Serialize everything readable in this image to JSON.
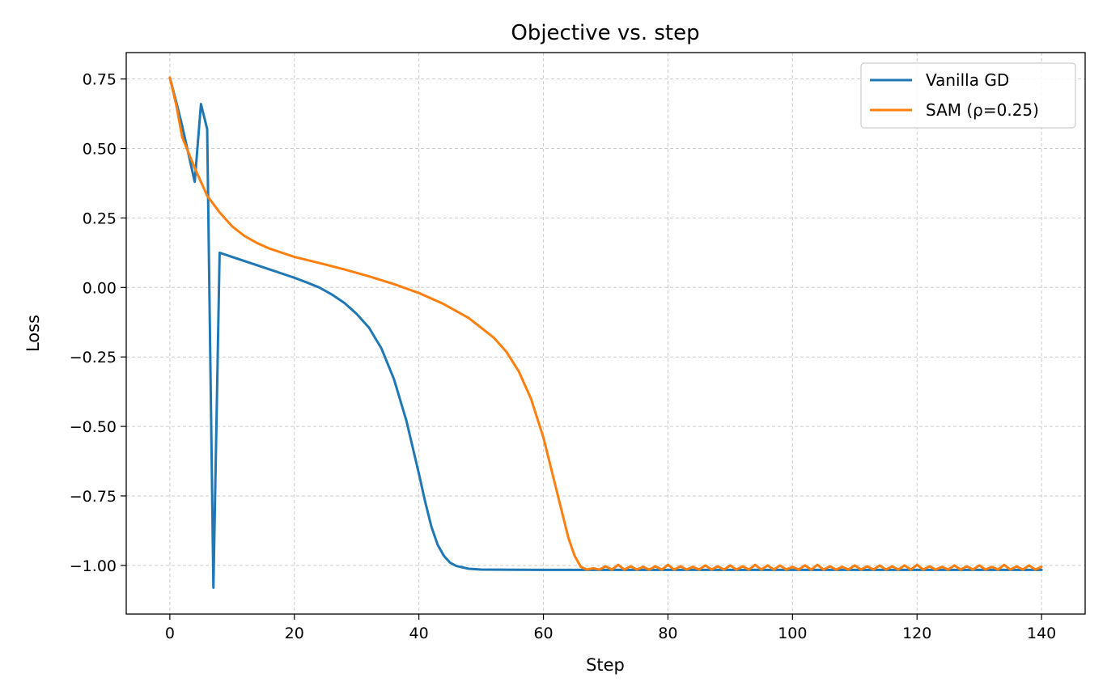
{
  "chart_data": {
    "type": "line",
    "title": "Objective vs. step",
    "xlabel": "Step",
    "ylabel": "Loss",
    "xlim": [
      -7,
      147
    ],
    "ylim": [
      -1.175,
      0.845
    ],
    "x_ticks": [
      0,
      20,
      40,
      60,
      80,
      100,
      120,
      140
    ],
    "x_tick_labels": [
      "0",
      "20",
      "40",
      "60",
      "80",
      "100",
      "120",
      "140"
    ],
    "y_ticks": [
      0.75,
      0.5,
      0.25,
      0.0,
      -0.25,
      -0.5,
      -0.75,
      -1.0
    ],
    "y_tick_labels": [
      "0.75",
      "0.50",
      "0.25",
      "0.00",
      "−0.25",
      "−0.50",
      "−0.75",
      "−1.00"
    ],
    "grid": true,
    "legend_position": "top-right",
    "series": [
      {
        "name": "Vanilla GD",
        "color": "#1f77b4",
        "points": [
          [
            0,
            0.755
          ],
          [
            1,
            0.67
          ],
          [
            2,
            0.58
          ],
          [
            3,
            0.48
          ],
          [
            4,
            0.38
          ],
          [
            5,
            0.66
          ],
          [
            6,
            0.57
          ],
          [
            7,
            -1.08
          ],
          [
            8,
            0.125
          ],
          [
            10,
            0.11
          ],
          [
            12,
            0.095
          ],
          [
            14,
            0.08
          ],
          [
            16,
            0.065
          ],
          [
            18,
            0.05
          ],
          [
            20,
            0.035
          ],
          [
            22,
            0.018
          ],
          [
            24,
            0.0
          ],
          [
            26,
            -0.025
          ],
          [
            28,
            -0.055
          ],
          [
            30,
            -0.095
          ],
          [
            32,
            -0.145
          ],
          [
            34,
            -0.22
          ],
          [
            36,
            -0.33
          ],
          [
            38,
            -0.48
          ],
          [
            40,
            -0.67
          ],
          [
            41,
            -0.77
          ],
          [
            42,
            -0.86
          ],
          [
            43,
            -0.925
          ],
          [
            44,
            -0.965
          ],
          [
            45,
            -0.99
          ],
          [
            46,
            -1.002
          ],
          [
            48,
            -1.012
          ],
          [
            50,
            -1.015
          ],
          [
            60,
            -1.016
          ],
          [
            80,
            -1.016
          ],
          [
            100,
            -1.016
          ],
          [
            120,
            -1.016
          ],
          [
            140,
            -1.016
          ]
        ]
      },
      {
        "name": "SAM (ρ=0.25)",
        "color": "#ff7f0e",
        "points": [
          [
            0,
            0.755
          ],
          [
            1,
            0.66
          ],
          [
            2,
            0.54
          ],
          [
            4,
            0.43
          ],
          [
            6,
            0.33
          ],
          [
            8,
            0.27
          ],
          [
            10,
            0.22
          ],
          [
            12,
            0.185
          ],
          [
            14,
            0.16
          ],
          [
            16,
            0.14
          ],
          [
            18,
            0.125
          ],
          [
            20,
            0.11
          ],
          [
            24,
            0.088
          ],
          [
            28,
            0.065
          ],
          [
            32,
            0.04
          ],
          [
            36,
            0.012
          ],
          [
            40,
            -0.02
          ],
          [
            44,
            -0.06
          ],
          [
            48,
            -0.11
          ],
          [
            52,
            -0.18
          ],
          [
            54,
            -0.23
          ],
          [
            56,
            -0.3
          ],
          [
            58,
            -0.4
          ],
          [
            60,
            -0.54
          ],
          [
            62,
            -0.72
          ],
          [
            64,
            -0.9
          ],
          [
            65,
            -0.965
          ],
          [
            66,
            -1.005
          ],
          [
            67,
            -1.015
          ],
          [
            68,
            -1.01
          ],
          [
            69,
            -1.015
          ],
          [
            70,
            -1.003
          ],
          [
            71,
            -1.015
          ],
          [
            72,
            -0.998
          ],
          [
            73,
            -1.015
          ],
          [
            74,
            -1.003
          ],
          [
            75,
            -1.015
          ],
          [
            76,
            -1.005
          ],
          [
            77,
            -1.015
          ],
          [
            78,
            -1.003
          ],
          [
            79,
            -1.015
          ],
          [
            80,
            -0.998
          ],
          [
            81,
            -1.015
          ],
          [
            82,
            -1.003
          ],
          [
            83,
            -1.015
          ],
          [
            84,
            -1.005
          ],
          [
            85,
            -1.015
          ],
          [
            86,
            -1.0
          ],
          [
            87,
            -1.015
          ],
          [
            88,
            -1.003
          ],
          [
            89,
            -1.015
          ],
          [
            90,
            -1.0
          ],
          [
            91,
            -1.015
          ],
          [
            92,
            -1.003
          ],
          [
            93,
            -1.015
          ],
          [
            94,
            -0.998
          ],
          [
            95,
            -1.015
          ],
          [
            96,
            -1.0
          ],
          [
            97,
            -1.015
          ],
          [
            98,
            -1.0
          ],
          [
            99,
            -1.015
          ],
          [
            100,
            -1.005
          ],
          [
            101,
            -1.015
          ],
          [
            102,
            -1.0
          ],
          [
            103,
            -1.015
          ],
          [
            104,
            -0.998
          ],
          [
            105,
            -1.015
          ],
          [
            106,
            -1.003
          ],
          [
            107,
            -1.015
          ],
          [
            108,
            -1.005
          ],
          [
            109,
            -1.015
          ],
          [
            110,
            -1.0
          ],
          [
            111,
            -1.015
          ],
          [
            112,
            -1.003
          ],
          [
            113,
            -1.015
          ],
          [
            114,
            -1.0
          ],
          [
            115,
            -1.015
          ],
          [
            116,
            -1.003
          ],
          [
            117,
            -1.015
          ],
          [
            118,
            -1.0
          ],
          [
            119,
            -1.015
          ],
          [
            120,
            -0.998
          ],
          [
            121,
            -1.015
          ],
          [
            122,
            -1.003
          ],
          [
            123,
            -1.015
          ],
          [
            124,
            -1.005
          ],
          [
            125,
            -1.015
          ],
          [
            126,
            -1.0
          ],
          [
            127,
            -1.015
          ],
          [
            128,
            -1.003
          ],
          [
            129,
            -1.015
          ],
          [
            130,
            -1.0
          ],
          [
            131,
            -1.015
          ],
          [
            132,
            -1.005
          ],
          [
            133,
            -1.015
          ],
          [
            134,
            -0.998
          ],
          [
            135,
            -1.015
          ],
          [
            136,
            -1.003
          ],
          [
            137,
            -1.015
          ],
          [
            138,
            -1.0
          ],
          [
            139,
            -1.015
          ],
          [
            140,
            -1.005
          ]
        ]
      }
    ]
  }
}
